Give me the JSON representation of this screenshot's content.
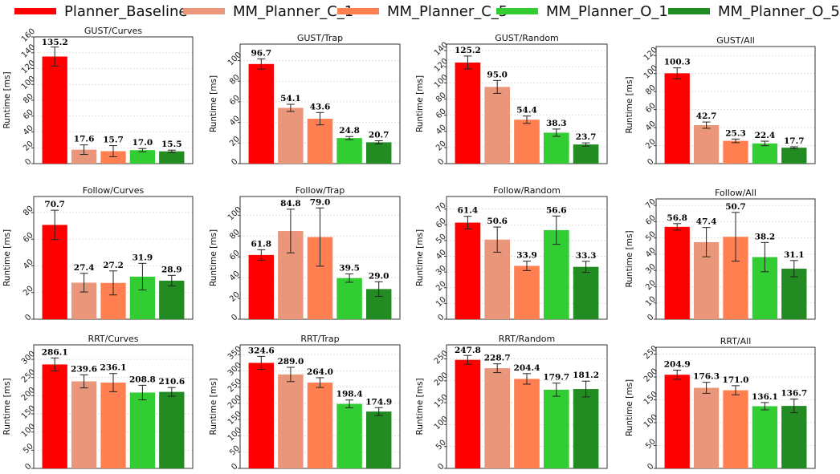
{
  "legend": {
    "series": [
      {
        "name": "Planner_Baseline",
        "color": "#ff0000"
      },
      {
        "name": "MM_Planner_C_1",
        "color": "#e9967a"
      },
      {
        "name": "MM_Planner_C_5",
        "color": "#ff7f50"
      },
      {
        "name": "MM_Planner_O_1",
        "color": "#32cd32"
      },
      {
        "name": "MM_Planner_O_5",
        "color": "#228b22"
      }
    ]
  },
  "chart_data": [
    {
      "type": "bar",
      "title": "GUST/Curves",
      "ylabel": "Runtime [ms]",
      "ylim": [
        0,
        160
      ],
      "yticks": [
        0,
        20,
        40,
        60,
        80,
        100,
        120,
        140,
        160
      ],
      "values": [
        135.2,
        17.6,
        15.7,
        17.0,
        15.5
      ],
      "errors": [
        12,
        6,
        7,
        2,
        1.5
      ],
      "value_labels": [
        "135.2",
        "17.6",
        "15.7",
        "17.0",
        "15.5"
      ]
    },
    {
      "type": "bar",
      "title": "GUST/Trap",
      "ylabel": "Runtime [ms]",
      "ylim": [
        0,
        116
      ],
      "yticks": [
        0,
        20,
        40,
        60,
        80,
        100
      ],
      "values": [
        96.7,
        54.1,
        43.6,
        24.8,
        20.7
      ],
      "errors": [
        5,
        3.5,
        6,
        1.5,
        1.5
      ],
      "value_labels": [
        "96.7",
        "54.1",
        "43.6",
        "24.8",
        "20.7"
      ]
    },
    {
      "type": "bar",
      "title": "GUST/Random",
      "ylabel": "Runtime [ms]",
      "ylim": [
        0,
        148
      ],
      "yticks": [
        0,
        20,
        40,
        60,
        80,
        100,
        120,
        140
      ],
      "values": [
        125.2,
        95.0,
        54.4,
        38.3,
        23.7
      ],
      "errors": [
        8,
        8,
        4.5,
        4.5,
        2
      ],
      "value_labels": [
        "125.2",
        "95.0",
        "54.4",
        "38.3",
        "23.7"
      ]
    },
    {
      "type": "bar",
      "title": "GUST/All",
      "ylabel": "Runtime [ms]",
      "ylim": [
        0,
        130
      ],
      "yticks": [
        0,
        20,
        40,
        60,
        80,
        100,
        120
      ],
      "values": [
        100.3,
        42.7,
        25.3,
        22.4,
        17.7
      ],
      "errors": [
        6,
        3.5,
        2,
        2.5,
        1
      ],
      "value_labels": [
        "100.3",
        "42.7",
        "25.3",
        "22.4",
        "17.7"
      ]
    },
    {
      "type": "bar",
      "title": "Follow/Curves",
      "ylabel": "Runtime [ms]",
      "ylim": [
        0,
        92
      ],
      "yticks": [
        0,
        20,
        40,
        60,
        80
      ],
      "values": [
        70.7,
        27.4,
        27.2,
        31.9,
        28.9
      ],
      "errors": [
        11,
        7,
        9,
        10,
        4
      ],
      "value_labels": [
        "70.7",
        "27.4",
        "27.2",
        "31.9",
        "28.9"
      ]
    },
    {
      "type": "bar",
      "title": "Follow/Trap",
      "ylabel": "Runtime [ms]",
      "ylim": [
        0,
        118
      ],
      "yticks": [
        0,
        20,
        40,
        60,
        80,
        100
      ],
      "values": [
        61.8,
        84.8,
        79.0,
        39.5,
        29.0
      ],
      "errors": [
        5,
        21,
        28,
        4,
        7
      ],
      "value_labels": [
        "61.8",
        "84.8",
        "79.0",
        "39.5",
        "29.0"
      ]
    },
    {
      "type": "bar",
      "title": "Follow/Random",
      "ylabel": "Runtime [ms]",
      "ylim": [
        0,
        78
      ],
      "yticks": [
        0,
        10,
        20,
        30,
        40,
        50,
        60,
        70
      ],
      "values": [
        61.4,
        50.6,
        33.9,
        56.6,
        33.3
      ],
      "errors": [
        4,
        8,
        3,
        9,
        3.5
      ],
      "value_labels": [
        "61.4",
        "50.6",
        "33.9",
        "56.6",
        "33.3"
      ]
    },
    {
      "type": "bar",
      "title": "Follow/All",
      "ylabel": "Runtime [ms]",
      "ylim": [
        0,
        74
      ],
      "yticks": [
        0,
        10,
        20,
        30,
        40,
        50,
        60,
        70
      ],
      "values": [
        56.8,
        47.4,
        50.7,
        38.2,
        31.1
      ],
      "errors": [
        2,
        9,
        15,
        9,
        5
      ],
      "value_labels": [
        "56.8",
        "47.4",
        "50.7",
        "38.2",
        "31.1"
      ]
    },
    {
      "type": "bar",
      "title": "RRT/Curves",
      "ylabel": "Runtime [ms]",
      "ylim": [
        0,
        340
      ],
      "yticks": [
        0,
        50,
        100,
        150,
        200,
        250,
        300
      ],
      "values": [
        286.1,
        239.6,
        236.1,
        208.8,
        210.6
      ],
      "errors": [
        18,
        18,
        25,
        20,
        12
      ],
      "value_labels": [
        "286.1",
        "239.6",
        "236.1",
        "208.8",
        "210.6"
      ]
    },
    {
      "type": "bar",
      "title": "RRT/Trap",
      "ylabel": "Runtime [ms]",
      "ylim": [
        0,
        380
      ],
      "yticks": [
        0,
        50,
        100,
        150,
        200,
        250,
        300,
        350
      ],
      "values": [
        324.6,
        289.0,
        264.0,
        198.4,
        174.9
      ],
      "errors": [
        20,
        22,
        15,
        12,
        12
      ],
      "value_labels": [
        "324.6",
        "289.0",
        "264.0",
        "198.4",
        "174.9"
      ]
    },
    {
      "type": "bar",
      "title": "RRT/Random",
      "ylabel": "Runtime [ms]",
      "ylim": [
        0,
        282
      ],
      "yticks": [
        0,
        50,
        100,
        150,
        200,
        250
      ],
      "values": [
        247.8,
        228.7,
        204.4,
        179.7,
        181.2
      ],
      "errors": [
        10,
        10,
        12,
        15,
        18
      ],
      "value_labels": [
        "247.8",
        "228.7",
        "204.4",
        "179.7",
        "181.2"
      ]
    },
    {
      "type": "bar",
      "title": "RRT/All",
      "ylabel": "Runtime [ms]",
      "ylim": [
        0,
        265
      ],
      "yticks": [
        0,
        50,
        100,
        150,
        200,
        250
      ],
      "values": [
        204.9,
        176.3,
        171.0,
        136.1,
        136.7
      ],
      "errors": [
        10,
        12,
        10,
        8,
        15
      ],
      "value_labels": [
        "204.9",
        "176.3",
        "171.0",
        "136.1",
        "136.7"
      ]
    }
  ]
}
